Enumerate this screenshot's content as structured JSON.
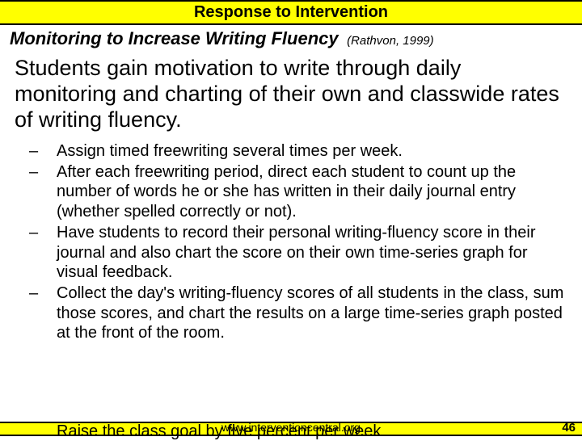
{
  "header": {
    "title": "Response to Intervention"
  },
  "slide": {
    "title": "Monitoring to Increase Writing Fluency",
    "citation": "(Rathvon, 1999)",
    "body": "Students gain motivation to write through daily monitoring and charting of their own and classwide rates of writing fluency.",
    "bullets": [
      "Assign timed freewriting several times per week.",
      " After each freewriting period, direct each student to count up the number of words he or she has written in their daily journal entry (whether spelled correctly or not).",
      "Have students to record their personal writing-fluency score in their journal and also chart the score on their own time-series graph for visual feedback.",
      "Collect the day's writing-fluency scores of all students in the class, sum those scores, and chart the results on a large time-series graph posted at the front of the room."
    ],
    "cutoff": "Raise the class goal by five percent per week"
  },
  "footer": {
    "url": "www.interventioncentral.org",
    "page": "46"
  },
  "colors": {
    "highlight": "#ffff00",
    "text": "#000000",
    "background": "#ffffff"
  }
}
